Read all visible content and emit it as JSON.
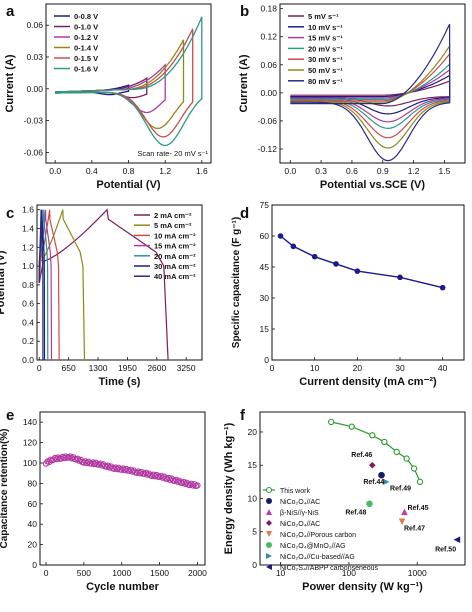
{
  "chart_data": [
    {
      "panel": "a",
      "type": "line",
      "title": "",
      "xlabel": "Potential (V)",
      "ylabel": "Current (A)",
      "xlim": [
        -0.1,
        1.7
      ],
      "ylim": [
        -0.07,
        0.08
      ],
      "xticks": [
        "0.0",
        "0.4",
        "0.8",
        "1.2",
        "1.6"
      ],
      "xtick_values": [
        0.0,
        0.4,
        0.8,
        1.2,
        1.6
      ],
      "yticks": [
        "-0.06",
        "-0.03",
        "0.00",
        "0.03",
        "0.06"
      ],
      "ytick_values": [
        -0.06,
        -0.03,
        0.0,
        0.03,
        0.06
      ],
      "annotation": "Scan rate- 20 mV s⁻¹",
      "legend_position": "top-left",
      "series": [
        {
          "name": "0-0.8 V",
          "color": "#1a1a8c",
          "vmax": 0.8,
          "peak_top": 0.004,
          "peak_bottom": -0.003,
          "trough_x": 0.6
        },
        {
          "name": "0-1.0 V",
          "color": "#7a1f5c",
          "vmax": 1.0,
          "peak_top": 0.01,
          "peak_bottom": -0.006,
          "trough_x": 0.85
        },
        {
          "name": "0-1.2 V",
          "color": "#b03aa0",
          "vmax": 1.2,
          "peak_top": 0.022,
          "peak_bottom": -0.02,
          "trough_x": 1.0
        },
        {
          "name": "0-1.4 V",
          "color": "#8a8a1a",
          "vmax": 1.4,
          "peak_top": 0.045,
          "peak_bottom": -0.035,
          "trough_x": 1.12
        },
        {
          "name": "0-1.5 V",
          "color": "#d04a4a",
          "vmax": 1.5,
          "peak_top": 0.055,
          "peak_bottom": -0.043,
          "trough_x": 1.18
        },
        {
          "name": "0-1.6 V",
          "color": "#2a9a8a",
          "vmax": 1.6,
          "peak_top": 0.066,
          "peak_bottom": -0.051,
          "trough_x": 1.2
        }
      ]
    },
    {
      "panel": "b",
      "type": "line",
      "title": "",
      "xlabel": "Potential vs.SCE (V)",
      "ylabel": "Current (A)",
      "xlim": [
        -0.1,
        1.7
      ],
      "ylim": [
        -0.15,
        0.19
      ],
      "xticks": [
        "0.0",
        "0.3",
        "0.6",
        "0.9",
        "1.2",
        "1.5"
      ],
      "xtick_values": [
        0.0,
        0.3,
        0.6,
        0.9,
        1.2,
        1.5
      ],
      "yticks": [
        "-0.12",
        "-0.06",
        "0.00",
        "0.06",
        "0.12",
        "0.18"
      ],
      "ytick_values": [
        -0.12,
        -0.06,
        0.0,
        0.06,
        0.12,
        0.18
      ],
      "legend_position": "top-left",
      "series": [
        {
          "name": "5 mV s⁻¹",
          "color": "#7a1f5c",
          "peak_top": 0.03,
          "peak_bottom": -0.02
        },
        {
          "name": "10 mV s⁻¹",
          "color": "#1a1a8c",
          "peak_top": 0.045,
          "peak_bottom": -0.035
        },
        {
          "name": "15 mV s⁻¹",
          "color": "#b03aa0",
          "peak_top": 0.06,
          "peak_bottom": -0.05
        },
        {
          "name": "20 mV s⁻¹",
          "color": "#2a9a8a",
          "peak_top": 0.075,
          "peak_bottom": -0.062
        },
        {
          "name": "30 mV s⁻¹",
          "color": "#d04a4a",
          "peak_top": 0.1,
          "peak_bottom": -0.08
        },
        {
          "name": "50 mV s⁻¹",
          "color": "#8a8a1a",
          "peak_top": 0.12,
          "peak_bottom": -0.1
        },
        {
          "name": "80 mV s⁻¹",
          "color": "#2a2a8a",
          "peak_top": 0.17,
          "peak_bottom": -0.125
        }
      ]
    },
    {
      "panel": "c",
      "type": "line",
      "title": "",
      "xlabel": "Time (s)",
      "ylabel": "Potential (V)",
      "xlim": [
        -50,
        3600
      ],
      "ylim": [
        0,
        1.65
      ],
      "xticks": [
        "0",
        "650",
        "1300",
        "1950",
        "2600",
        "3250"
      ],
      "xtick_values": [
        0,
        650,
        1300,
        1950,
        2600,
        3250
      ],
      "yticks": [
        "0.0",
        "0.2",
        "0.4",
        "0.6",
        "0.8",
        "1.0",
        "1.2",
        "1.4",
        "1.6"
      ],
      "ytick_values": [
        0.0,
        0.2,
        0.4,
        0.6,
        0.8,
        1.0,
        1.2,
        1.4,
        1.6
      ],
      "legend_position": "top-right",
      "series": [
        {
          "name": "2 mA cm⁻²",
          "color": "#7a1f5c",
          "t_charge": 1500,
          "t_end": 2850
        },
        {
          "name": "5 mA cm⁻²",
          "color": "#8a8a1a",
          "t_charge": 520,
          "t_end": 1000
        },
        {
          "name": "10 mA cm⁻²",
          "color": "#d04a4a",
          "t_charge": 230,
          "t_end": 440
        },
        {
          "name": "15 mA cm⁻²",
          "color": "#b03aa0",
          "t_charge": 140,
          "t_end": 270
        },
        {
          "name": "20 mA cm⁻²",
          "color": "#2a9a8a",
          "t_charge": 100,
          "t_end": 190
        },
        {
          "name": "30 mA cm⁻²",
          "color": "#1a1a8c",
          "t_charge": 60,
          "t_end": 115
        },
        {
          "name": "40 mA cm⁻²",
          "color": "#2a2a8a",
          "t_charge": 40,
          "t_end": 80
        }
      ]
    },
    {
      "panel": "d",
      "type": "line",
      "title": "",
      "xlabel": "Current density (mA cm⁻²)",
      "ylabel": "Specific capacitance (F g⁻¹)",
      "xlim": [
        0,
        45
      ],
      "ylim": [
        0,
        75
      ],
      "xticks": [
        "0",
        "10",
        "20",
        "30",
        "40"
      ],
      "xtick_values": [
        0,
        10,
        20,
        30,
        40
      ],
      "yticks": [
        "0",
        "15",
        "30",
        "45",
        "60",
        "75"
      ],
      "ytick_values": [
        0,
        15,
        30,
        45,
        60,
        75
      ],
      "color": "#1a1a8c",
      "x": [
        2,
        5,
        10,
        15,
        20,
        30,
        40
      ],
      "y": [
        60,
        55,
        50,
        46.5,
        43,
        40,
        35
      ]
    },
    {
      "panel": "e",
      "type": "scatter",
      "title": "",
      "xlabel": "Cycle number",
      "ylabel": "Capacitance retention(%)",
      "xlim": [
        -80,
        2100
      ],
      "ylim": [
        0,
        150
      ],
      "xticks": [
        "0",
        "500",
        "1000",
        "1500",
        "2000"
      ],
      "xtick_values": [
        0,
        500,
        1000,
        1500,
        2000
      ],
      "yticks": [
        "0",
        "20",
        "40",
        "60",
        "80",
        "100",
        "120",
        "140"
      ],
      "ytick_values": [
        0,
        20,
        40,
        60,
        80,
        100,
        120,
        140
      ],
      "color": "#b03aa0",
      "x": [
        0,
        100,
        200,
        300,
        400,
        500,
        600,
        700,
        800,
        900,
        1000,
        1100,
        1200,
        1300,
        1400,
        1500,
        1600,
        1700,
        1800,
        1900,
        2000
      ],
      "y": [
        100,
        104,
        105,
        106,
        104,
        101,
        100,
        99,
        97,
        95,
        94,
        93,
        91,
        90,
        88,
        87,
        85,
        83,
        81,
        79,
        78
      ]
    },
    {
      "panel": "f",
      "type": "scatter",
      "title": "",
      "xlabel": "Power density (W kg⁻¹)",
      "ylabel": "Energy density (Wh kg⁻¹)",
      "xscale": "log",
      "xlim": [
        5,
        5000
      ],
      "ylim": [
        0,
        23
      ],
      "xticks": [
        "10",
        "100",
        "1000"
      ],
      "xtick_values": [
        10,
        100,
        1000
      ],
      "yticks": [
        "0",
        "5",
        "10",
        "15",
        "20"
      ],
      "ytick_values": [
        0,
        5,
        10,
        15,
        20
      ],
      "legend_position": "bottom-left",
      "series": [
        {
          "name": "This work",
          "marker": "circle-line",
          "color": "#2a9a2a",
          "x": [
            55,
            110,
            220,
            330,
            500,
            700,
            900,
            1100
          ],
          "y": [
            21.5,
            20.8,
            19.5,
            18.5,
            17,
            16,
            14.5,
            12.5
          ]
        },
        {
          "name": "NiCo₂O₄//AC",
          "marker": "circle",
          "color": "#1a1a6a",
          "x": [
            300
          ],
          "y": [
            13.5
          ],
          "ref": ""
        },
        {
          "name": "β-NiS//γ-NiS",
          "marker": "triangle-up",
          "color": "#c03ab0",
          "x": [
            650
          ],
          "y": [
            8
          ],
          "ref": "Ref.45"
        },
        {
          "name": "NiCo₂O₄//AC",
          "marker": "diamond",
          "color": "#7a1f5c",
          "x": [
            220
          ],
          "y": [
            15
          ],
          "ref": "Ref.46"
        },
        {
          "name": "NiCo₂O₄//Porous carbon",
          "marker": "triangle-down",
          "color": "#e07a4a",
          "x": [
            600
          ],
          "y": [
            6.5
          ],
          "ref": "Ref.47"
        },
        {
          "name": "NiCo₂O₄@MnO₂//AG",
          "marker": "circle",
          "color": "#4aba6a",
          "x": [
            200
          ],
          "y": [
            9.2
          ],
          "ref": "Ref.48"
        },
        {
          "name": "NiCo₂O₄//Cu-based//AG",
          "marker": "triangle-right",
          "color": "#3a8aaa",
          "x": [
            350
          ],
          "y": [
            12.5
          ],
          "ref": "Ref.49"
        },
        {
          "name": "NiCo₂S₄//ABPP carbonseneous",
          "marker": "triangle-left",
          "color": "#1a1a7a",
          "x": [
            3800
          ],
          "y": [
            3.8
          ],
          "ref": "Ref.50"
        }
      ],
      "ref_labels": [
        "Ref.46",
        "Ref.44",
        "Ref.49",
        "Ref.48",
        "Ref.45",
        "Ref.47",
        "Ref.50"
      ]
    }
  ],
  "panel_letters": [
    "a",
    "b",
    "c",
    "d",
    "e",
    "f"
  ]
}
